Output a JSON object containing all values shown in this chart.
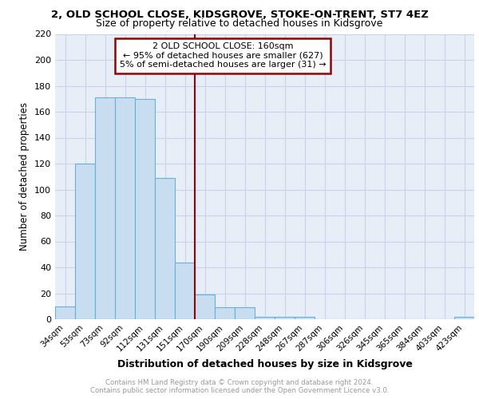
{
  "title_line1": "2, OLD SCHOOL CLOSE, KIDSGROVE, STOKE-ON-TRENT, ST7 4EZ",
  "title_line2": "Size of property relative to detached houses in Kidsgrove",
  "xlabel": "Distribution of detached houses by size in Kidsgrove",
  "ylabel": "Number of detached properties",
  "categories": [
    "34sqm",
    "53sqm",
    "73sqm",
    "92sqm",
    "112sqm",
    "131sqm",
    "151sqm",
    "170sqm",
    "190sqm",
    "209sqm",
    "228sqm",
    "248sqm",
    "267sqm",
    "287sqm",
    "306sqm",
    "326sqm",
    "345sqm",
    "365sqm",
    "384sqm",
    "403sqm",
    "423sqm"
  ],
  "values": [
    10,
    120,
    171,
    171,
    170,
    109,
    44,
    19,
    9,
    9,
    2,
    2,
    2,
    0,
    0,
    0,
    0,
    0,
    0,
    0,
    2
  ],
  "bar_color": "#c8ddf0",
  "bar_edge_color": "#6baed6",
  "vline_x": 7.0,
  "vline_color": "#990000",
  "annotation_line1": "2 OLD SCHOOL CLOSE: 160sqm",
  "annotation_line2": "← 95% of detached houses are smaller (627)",
  "annotation_line3": "5% of semi-detached houses are larger (31) →",
  "annotation_box_color": "#990000",
  "ylim": [
    0,
    220
  ],
  "yticks": [
    0,
    20,
    40,
    60,
    80,
    100,
    120,
    140,
    160,
    180,
    200,
    220
  ],
  "grid_color": "#c8d4e8",
  "background_color": "#e8eef8",
  "footer_text": "Contains HM Land Registry data © Crown copyright and database right 2024.\nContains public sector information licensed under the Open Government Licence v3.0.",
  "footer_color": "#999999"
}
